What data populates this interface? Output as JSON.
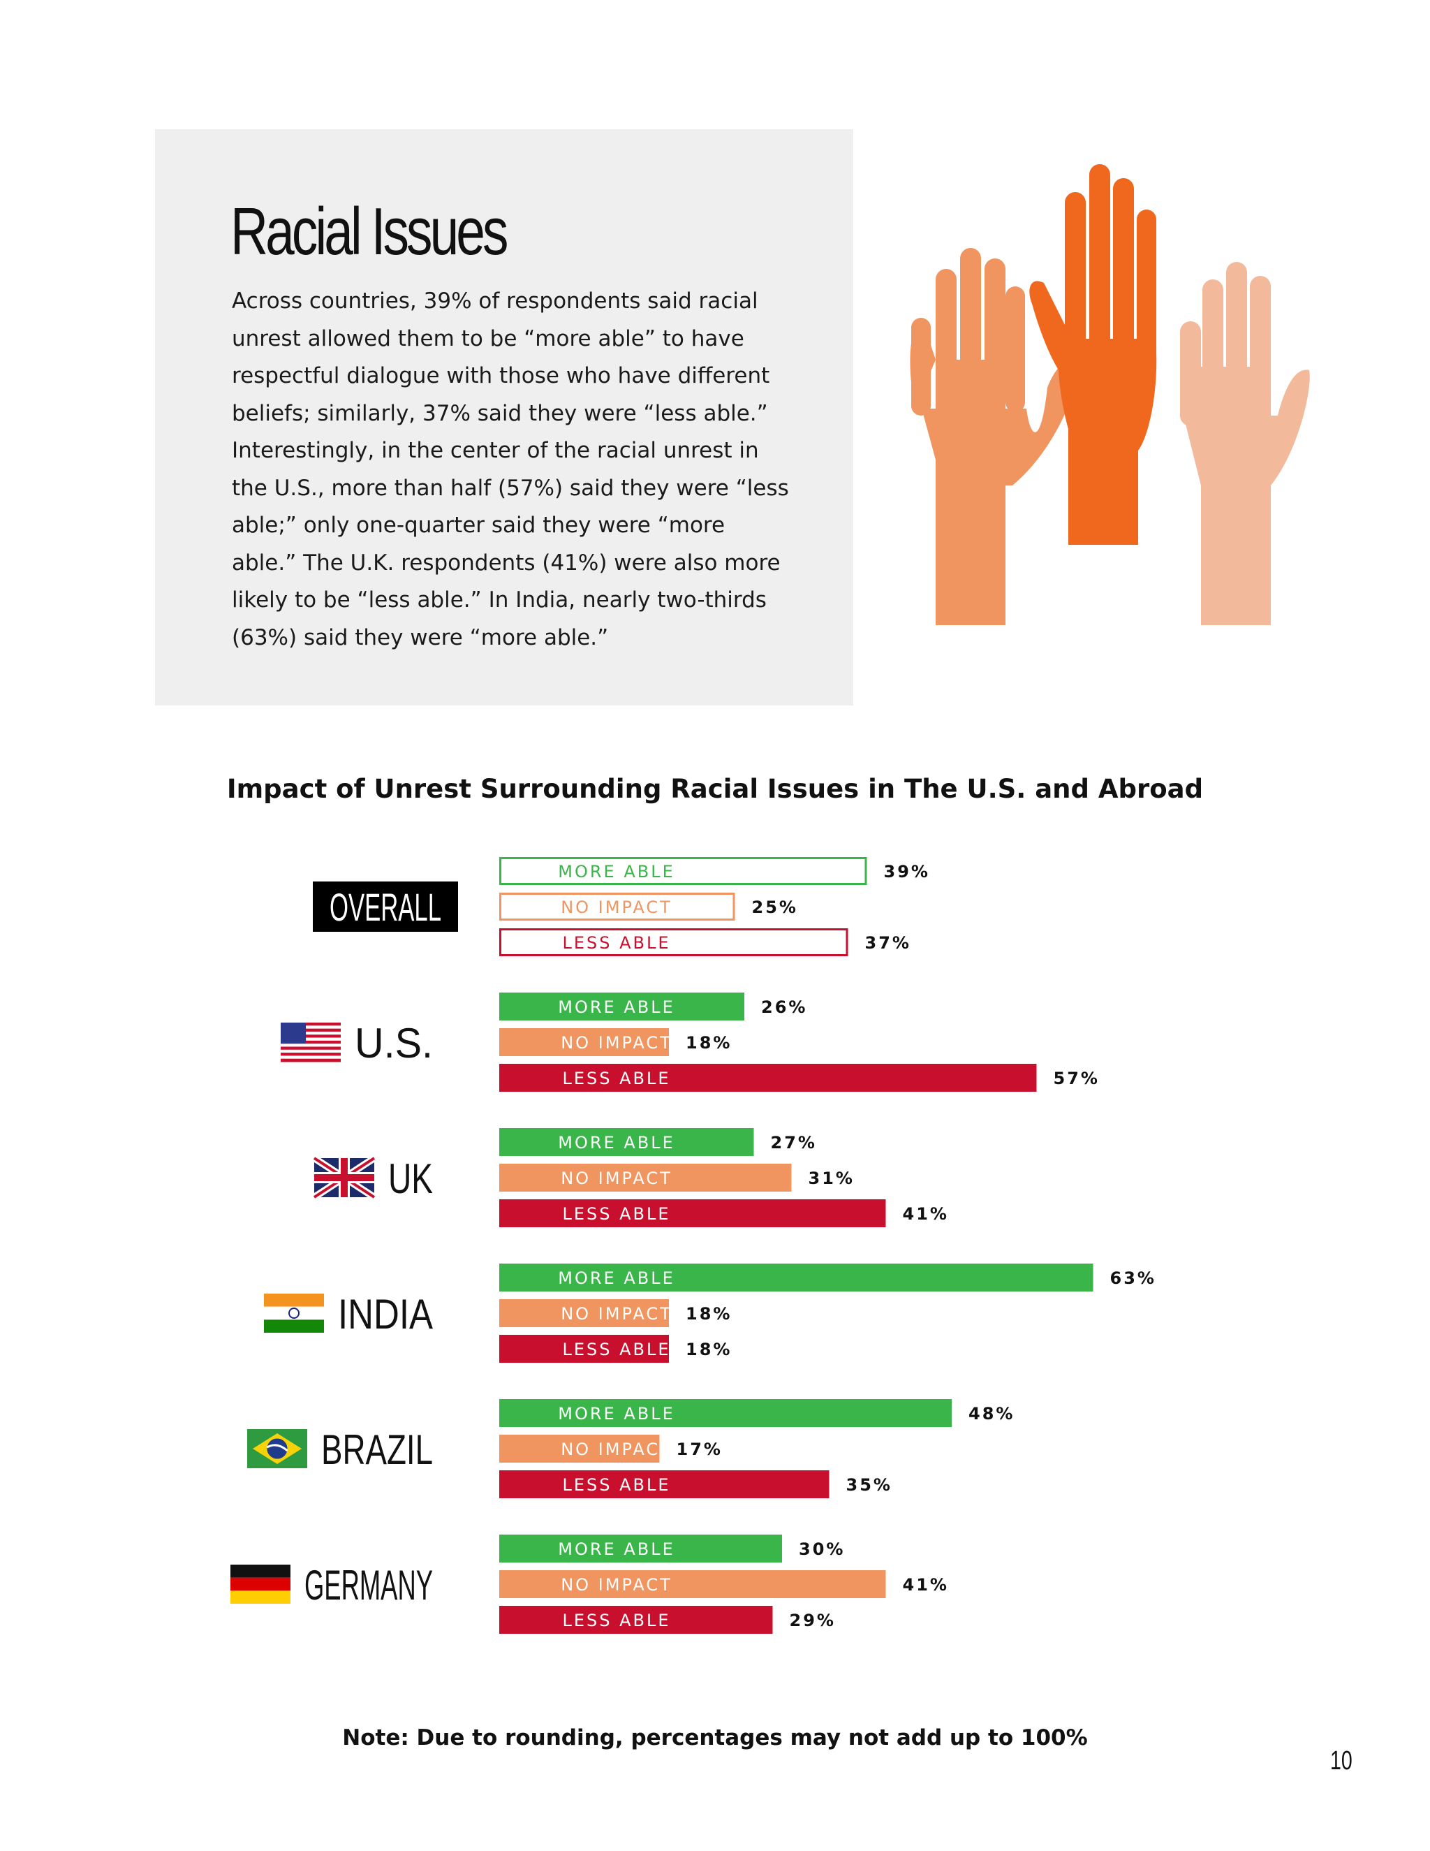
{
  "intro": {
    "title": "Racial Issues",
    "body": "Across countries, 39% of respondents said racial unrest allowed them to be “more able” to have respectful dialogue with those who have different beliefs; similarly, 37% said they were “less able.” Interestingly, in the center of the racial unrest in the U.S., more than half (57%) said they were “less able;” only one-quarter said they were “more able.” The U.K. respondents (41%) were also more likely to be “less able.” In India, nearly two-thirds (63%) said they were “more able.”"
  },
  "illustration": {
    "name": "raised-hands",
    "colors": [
      "#f0955f",
      "#f0671e",
      "#f2b99b"
    ]
  },
  "chart_data": {
    "type": "bar",
    "orientation": "horizontal",
    "title": "Impact of Unrest Surrounding Racial Issues in The U.S. and Abroad",
    "series_labels": [
      "MORE ABLE",
      "NO IMPACT",
      "LESS ABLE"
    ],
    "colors": {
      "more_able": "#3ab54a",
      "no_impact": "#f0955f",
      "less_able": "#c8102e"
    },
    "unit": "%",
    "xlim": [
      0,
      63
    ],
    "groups": [
      {
        "name": "OVERALL",
        "flag": "none",
        "outlined": true,
        "values": [
          39,
          25,
          37
        ]
      },
      {
        "name": "U.S.",
        "flag": "usa-flag",
        "outlined": false,
        "values": [
          26,
          18,
          57
        ]
      },
      {
        "name": "UK",
        "flag": "uk-flag",
        "outlined": false,
        "values": [
          27,
          31,
          41
        ]
      },
      {
        "name": "INDIA",
        "flag": "india-flag",
        "outlined": false,
        "values": [
          63,
          18,
          18
        ]
      },
      {
        "name": "BRAZIL",
        "flag": "brazil-flag",
        "outlined": false,
        "values": [
          48,
          17,
          35
        ]
      },
      {
        "name": "GERMANY",
        "flag": "germany-flag",
        "outlined": false,
        "values": [
          30,
          41,
          29
        ]
      }
    ]
  },
  "note": "Note: Due to rounding, percentages may not add up to 100%",
  "page_number": "10"
}
